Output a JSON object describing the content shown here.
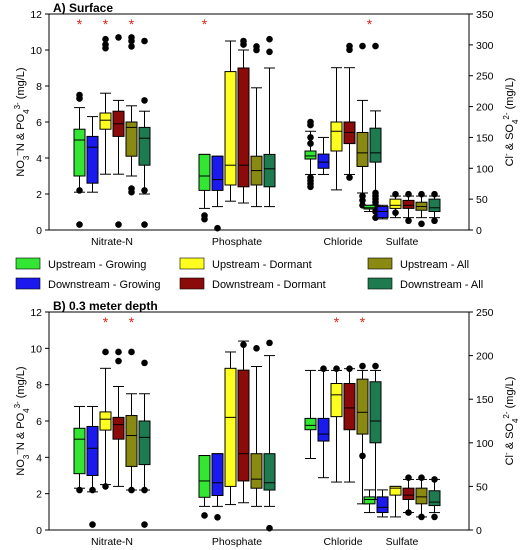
{
  "legend": [
    {
      "label": "Upstream - Growing",
      "color": "#33e633"
    },
    {
      "label": "Downstream - Growing",
      "color": "#1a1aee"
    },
    {
      "label": "Upstream - Dormant",
      "color": "#ffff1f"
    },
    {
      "label": "Downstream - Dormant",
      "color": "#8b0a0a"
    },
    {
      "label": "Upstream - All",
      "color": "#8a8a12"
    },
    {
      "label": "Downstream - All",
      "color": "#1e7b4f"
    }
  ],
  "chart_data": [
    {
      "type": "box",
      "title": "A) Surface",
      "ylabel_left": "NO3–N & PO43- (mg/L)",
      "ylabel_right": "Cl- & SO42- (mg/L)",
      "ylim_left": [
        0,
        12
      ],
      "ylim_right": [
        0,
        350
      ],
      "yticks_left": [
        0,
        2,
        4,
        6,
        8,
        10,
        12
      ],
      "yticks_right": [
        0,
        50,
        100,
        150,
        200,
        250,
        300,
        350
      ],
      "categories": [
        "Nitrate-N",
        "Phosphate",
        "Chloride",
        "Sulfate"
      ],
      "category_axis": [
        "left",
        "left",
        "right",
        "right"
      ],
      "significance": [
        {
          "category": "Nitrate-N",
          "box": 0
        },
        {
          "category": "Nitrate-N",
          "box": 2
        },
        {
          "category": "Nitrate-N",
          "box": 4
        },
        {
          "category": "Phosphate",
          "box": 0
        },
        {
          "category": "Sulfate",
          "box": 0
        }
      ],
      "groups": [
        {
          "category": "Nitrate-N",
          "boxes": [
            {
              "wl": 2.1,
              "q1": 3.0,
              "med": 5.0,
              "q3": 5.6,
              "wh": 6.8,
              "out": [
                0.3,
                2.2,
                7.3,
                7.5
              ]
            },
            {
              "wl": 2.1,
              "q1": 2.6,
              "med": 4.6,
              "q3": 5.2,
              "wh": 6.3,
              "out": []
            },
            {
              "wl": 3.1,
              "q1": 5.6,
              "med": 6.1,
              "q3": 6.5,
              "wh": 7.6,
              "out": [
                10.6,
                10.3,
                10.1
              ]
            },
            {
              "wl": 3.1,
              "q1": 5.2,
              "med": 5.9,
              "q3": 6.6,
              "wh": 7.2,
              "out": [
                10.7,
                0.3
              ]
            },
            {
              "wl": 3.0,
              "q1": 4.1,
              "med": 5.7,
              "q3": 6.0,
              "wh": 6.9,
              "out": [
                2.1,
                2.3,
                10.5,
                10.7,
                10.2
              ]
            },
            {
              "wl": 2.0,
              "q1": 3.6,
              "med": 5.1,
              "q3": 5.7,
              "wh": 6.6,
              "out": [
                2.2,
                0.3,
                10.5,
                7.2
              ]
            }
          ]
        },
        {
          "category": "Phosphate",
          "boxes": [
            {
              "wl": 1.2,
              "q1": 2.2,
              "med": 3.0,
              "q3": 4.2,
              "wh": 4.2,
              "out": [
                0.8,
                0.6
              ]
            },
            {
              "wl": 1.3,
              "q1": 2.2,
              "med": 2.8,
              "q3": 4.1,
              "wh": 4.1,
              "out": [
                0.1
              ]
            },
            {
              "wl": 1.6,
              "q1": 2.5,
              "med": 3.6,
              "q3": 8.8,
              "wh": 10.5,
              "out": []
            },
            {
              "wl": 1.5,
              "q1": 2.4,
              "med": 3.6,
              "q3": 9.0,
              "wh": 10.0,
              "out": [
                10.5,
                10.3
              ]
            },
            {
              "wl": 1.3,
              "q1": 2.5,
              "med": 3.3,
              "q3": 4.1,
              "wh": 7.9,
              "out": [
                10.2,
                10.0
              ]
            },
            {
              "wl": 1.3,
              "q1": 2.4,
              "med": 3.4,
              "q3": 4.2,
              "wh": 9.0,
              "out": [
                10.6,
                9.9
              ]
            }
          ]
        },
        {
          "category": "Chloride",
          "boxes": [
            {
              "wl": 90,
              "q1": 115,
              "med": 120,
              "q3": 128,
              "wh": 160,
              "out": [
                70,
                75,
                80,
                85,
                140,
                150,
                170,
                175
              ]
            },
            {
              "wl": 90,
              "q1": 100,
              "med": 110,
              "q3": 123,
              "wh": 150,
              "out": []
            },
            {
              "wl": 65,
              "q1": 128,
              "med": 160,
              "q3": 175,
              "wh": 263,
              "out": []
            },
            {
              "wl": 90,
              "q1": 140,
              "med": 158,
              "q3": 175,
              "wh": 263,
              "out": [
                85,
                298,
                292
              ]
            },
            {
              "wl": 60,
              "q1": 103,
              "med": 125,
              "q3": 158,
              "wh": 210,
              "out": [
                40,
                48,
                55,
                298
              ]
            },
            {
              "wl": 40,
              "q1": 110,
              "med": 125,
              "q3": 165,
              "wh": 193,
              "out": [
                20,
                30,
                35,
                40,
                45,
                50,
                55,
                60,
                298
              ]
            }
          ]
        },
        {
          "category": "Sulfate",
          "boxes": [
            {
              "wl": 30,
              "q1": 34,
              "med": 36,
              "q3": 40,
              "wh": 40,
              "out": []
            },
            {
              "wl": 18,
              "q1": 20,
              "med": 30,
              "q3": 38,
              "wh": 40,
              "out": []
            },
            {
              "wl": 20,
              "q1": 35,
              "med": 40,
              "q3": 50,
              "wh": 55,
              "out": [
                28,
                58
              ]
            },
            {
              "wl": 20,
              "q1": 35,
              "med": 40,
              "q3": 48,
              "wh": 55,
              "out": [
                15,
                58
              ]
            },
            {
              "wl": 20,
              "q1": 32,
              "med": 38,
              "q3": 45,
              "wh": 55,
              "out": [
                10,
                58
              ]
            },
            {
              "wl": 20,
              "q1": 30,
              "med": 36,
              "q3": 50,
              "wh": 55,
              "out": [
                15,
                58
              ]
            }
          ]
        }
      ]
    },
    {
      "type": "box",
      "title": "B) 0.3 meter depth",
      "ylabel_left": "NO3–N & PO43- (mg/L)",
      "ylabel_right": "Cl- & SO42- (mg/L)",
      "ylim_left": [
        0,
        12
      ],
      "ylim_right": [
        0,
        250
      ],
      "yticks_left": [
        0,
        2,
        4,
        6,
        8,
        10,
        12
      ],
      "yticks_right": [
        0,
        50,
        100,
        150,
        200,
        250
      ],
      "categories": [
        "Nitrate-N",
        "Phosphate",
        "Chloride",
        "Sulfate"
      ],
      "category_axis": [
        "left",
        "left",
        "right",
        "right"
      ],
      "significance": [
        {
          "category": "Nitrate-N",
          "box": 2
        },
        {
          "category": "Nitrate-N",
          "box": 4
        },
        {
          "category": "Chloride",
          "box": 2
        },
        {
          "category": "Chloride",
          "box": 4
        }
      ],
      "groups": [
        {
          "category": "Nitrate-N",
          "boxes": [
            {
              "wl": 2.3,
              "q1": 3.1,
              "med": 5.0,
              "q3": 5.6,
              "wh": 6.8,
              "out": [
                2.2
              ]
            },
            {
              "wl": 2.1,
              "q1": 3.0,
              "med": 4.5,
              "q3": 5.7,
              "wh": 6.8,
              "out": [
                0.3,
                2.2
              ]
            },
            {
              "wl": 2.5,
              "q1": 5.5,
              "med": 6.1,
              "q3": 6.5,
              "wh": 8.9,
              "out": [
                2.4,
                9.8
              ]
            },
            {
              "wl": 2.4,
              "q1": 5.0,
              "med": 5.8,
              "q3": 6.2,
              "wh": 7.9,
              "out": [
                9.8,
                9.3
              ]
            },
            {
              "wl": 2.2,
              "q1": 3.5,
              "med": 5.2,
              "q3": 6.3,
              "wh": 7.5,
              "out": [
                2.2,
                9.8
              ]
            },
            {
              "wl": 2.2,
              "q1": 3.6,
              "med": 5.1,
              "q3": 6.0,
              "wh": 7.5,
              "out": [
                0.3,
                2.2,
                9.2
              ]
            }
          ]
        },
        {
          "category": "Phosphate",
          "boxes": [
            {
              "wl": 1.3,
              "q1": 1.8,
              "med": 2.7,
              "q3": 4.1,
              "wh": 4.1,
              "out": [
                0.8
              ]
            },
            {
              "wl": 1.3,
              "q1": 1.9,
              "med": 2.6,
              "q3": 4.2,
              "wh": 4.2,
              "out": [
                0.7
              ]
            },
            {
              "wl": 1.4,
              "q1": 2.4,
              "med": 6.2,
              "q3": 8.9,
              "wh": 9.8,
              "out": []
            },
            {
              "wl": 1.5,
              "q1": 2.7,
              "med": 4.2,
              "q3": 8.8,
              "wh": 10.4,
              "out": [
                10.2
              ]
            },
            {
              "wl": 1.3,
              "q1": 2.3,
              "med": 2.8,
              "q3": 4.2,
              "wh": 9.0,
              "out": [
                10.0
              ]
            },
            {
              "wl": 1.3,
              "q1": 2.2,
              "med": 2.6,
              "q3": 4.2,
              "wh": 9.6,
              "out": [
                10.3,
                0.1
              ]
            }
          ]
        },
        {
          "category": "Chloride",
          "boxes": [
            {
              "wl": 82,
              "q1": 115,
              "med": 120,
              "q3": 128,
              "wh": 183,
              "out": []
            },
            {
              "wl": 60,
              "q1": 102,
              "med": 110,
              "q3": 128,
              "wh": 183,
              "out": [
                185
              ]
            },
            {
              "wl": 55,
              "q1": 130,
              "med": 155,
              "q3": 168,
              "wh": 183,
              "out": [
                185
              ]
            },
            {
              "wl": 55,
              "q1": 115,
              "med": 140,
              "q3": 168,
              "wh": 185,
              "out": [
                185
              ]
            },
            {
              "wl": 30,
              "q1": 110,
              "med": 135,
              "q3": 173,
              "wh": 183,
              "out": [
                85,
                188
              ]
            },
            {
              "wl": 35,
              "q1": 100,
              "med": 125,
              "q3": 170,
              "wh": 183,
              "out": [
                188
              ]
            }
          ]
        },
        {
          "category": "Sulfate",
          "boxes": [
            {
              "wl": 20,
              "q1": 30,
              "med": 35,
              "q3": 38,
              "wh": 46,
              "out": []
            },
            {
              "wl": 15,
              "q1": 20,
              "med": 26,
              "q3": 38,
              "wh": 46,
              "out": []
            },
            {
              "wl": 15,
              "q1": 40,
              "med": 48,
              "q3": 50,
              "wh": 50,
              "out": []
            },
            {
              "wl": 20,
              "q1": 35,
              "med": 40,
              "q3": 48,
              "wh": 58,
              "out": [
                20,
                60
              ]
            },
            {
              "wl": 15,
              "q1": 30,
              "med": 38,
              "q3": 48,
              "wh": 58,
              "out": [
                15,
                60
              ]
            },
            {
              "wl": 20,
              "q1": 28,
              "med": 32,
              "q3": 45,
              "wh": 58,
              "out": [
                15,
                58
              ]
            }
          ]
        }
      ]
    }
  ]
}
